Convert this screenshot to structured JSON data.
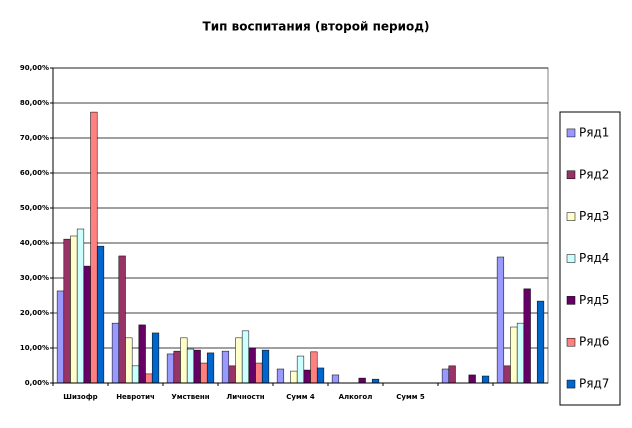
{
  "chart_data": {
    "type": "bar",
    "title": "Тип воспитания (второй период)",
    "categories": [
      "Шизофр",
      "Невротич",
      "Умственн",
      "Личностн",
      "Сумм 4",
      "Алкогол",
      "Сумм 5",
      null,
      null
    ],
    "series": [
      {
        "name": "Ряд1",
        "color": "#9999ff",
        "values": [
          26.3,
          17.1,
          8.3,
          9.1,
          4,
          2.3,
          0,
          4,
          36
        ]
      },
      {
        "name": "Ряд2",
        "color": "#993366",
        "values": [
          41.1,
          36.3,
          9.1,
          4.9,
          0,
          0,
          0,
          4.9,
          4.9
        ]
      },
      {
        "name": "Ряд3",
        "color": "#ffffcc",
        "values": [
          42,
          12.9,
          12.9,
          12.9,
          3.4,
          0,
          0,
          0,
          16
        ]
      },
      {
        "name": "Ряд4",
        "color": "#ccffff",
        "values": [
          44,
          4.9,
          9.7,
          14.9,
          7.7,
          0,
          0,
          0,
          17.1
        ]
      },
      {
        "name": "Ряд5",
        "color": "#660066",
        "values": [
          33.4,
          16.6,
          9.4,
          10,
          3.7,
          1.4,
          0,
          2.3,
          26.9
        ]
      },
      {
        "name": "Ряд6",
        "color": "#ff8080",
        "values": [
          77.4,
          2.6,
          5.7,
          5.7,
          8.9,
          0,
          0,
          0,
          0
        ]
      },
      {
        "name": "Ряд7",
        "color": "#0066cc",
        "values": [
          39.1,
          14.3,
          8.6,
          9.4,
          4.3,
          1.1,
          0,
          2,
          23.4
        ]
      }
    ],
    "ylim": [
      0,
      90
    ],
    "yticks": [
      {
        "value": 0,
        "label": "0,00%"
      },
      {
        "value": 10,
        "label": "10,00%"
      },
      {
        "value": 20,
        "label": "20,00%"
      },
      {
        "value": 30,
        "label": "30,00%"
      },
      {
        "value": 40,
        "label": "40,00%"
      },
      {
        "value": 50,
        "label": "50,00%"
      },
      {
        "value": 60,
        "label": "60,00%"
      },
      {
        "value": 70,
        "label": "70,00%"
      },
      {
        "value": 80,
        "label": "80,00%"
      },
      {
        "value": 90,
        "label": "90,00%"
      }
    ],
    "grid": true,
    "legend": "right"
  }
}
